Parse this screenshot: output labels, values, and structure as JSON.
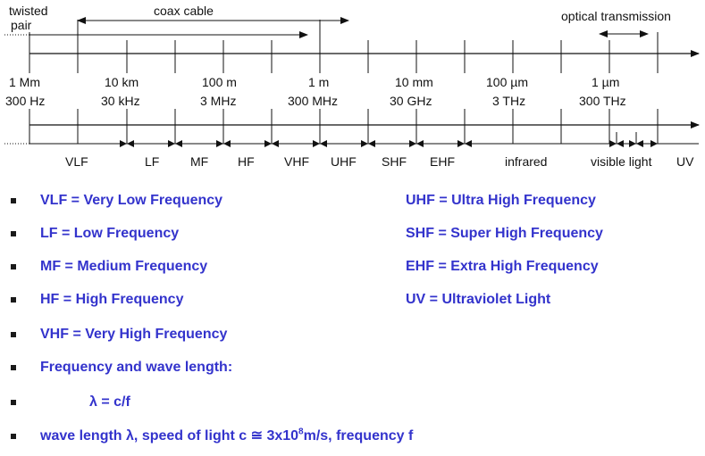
{
  "diagram": {
    "top_labels": {
      "twisted_pair_line1": "twisted",
      "twisted_pair_line2": "pair",
      "coax": "coax cable",
      "optical": "optical transmission"
    },
    "scale_points": [
      {
        "wavelength": "1 Mm",
        "frequency": "300 Hz"
      },
      {
        "wavelength": "10 km",
        "frequency": "30 kHz"
      },
      {
        "wavelength": "100 m",
        "frequency": "3 MHz"
      },
      {
        "wavelength": "1 m",
        "frequency": "300 MHz"
      },
      {
        "wavelength": "10 mm",
        "frequency": "30 GHz"
      },
      {
        "wavelength": "100 µm",
        "frequency": "3 THz"
      },
      {
        "wavelength": "1 µm",
        "frequency": "300 THz"
      }
    ],
    "bands": [
      "VLF",
      "LF",
      "MF",
      "HF",
      "VHF",
      "UHF",
      "SHF",
      "EHF",
      "infrared",
      "visible light",
      "UV"
    ]
  },
  "bullets_left": [
    "VLF = Very Low Frequency",
    "LF = Low Frequency",
    "MF = Medium Frequency",
    "HF = High Frequency",
    "VHF = Very High Frequency",
    "Frequency and wave length:",
    "λ = c/f"
  ],
  "bullets_right": [
    "UHF = Ultra High Frequency",
    "SHF = Super High Frequency",
    "EHF = Extra High Frequency",
    "UV = Ultraviolet Light"
  ],
  "last_line": {
    "before": "wave length λ, speed of light c ≅ 3x10",
    "exponent": "8",
    "after": "m/s, frequency f"
  }
}
